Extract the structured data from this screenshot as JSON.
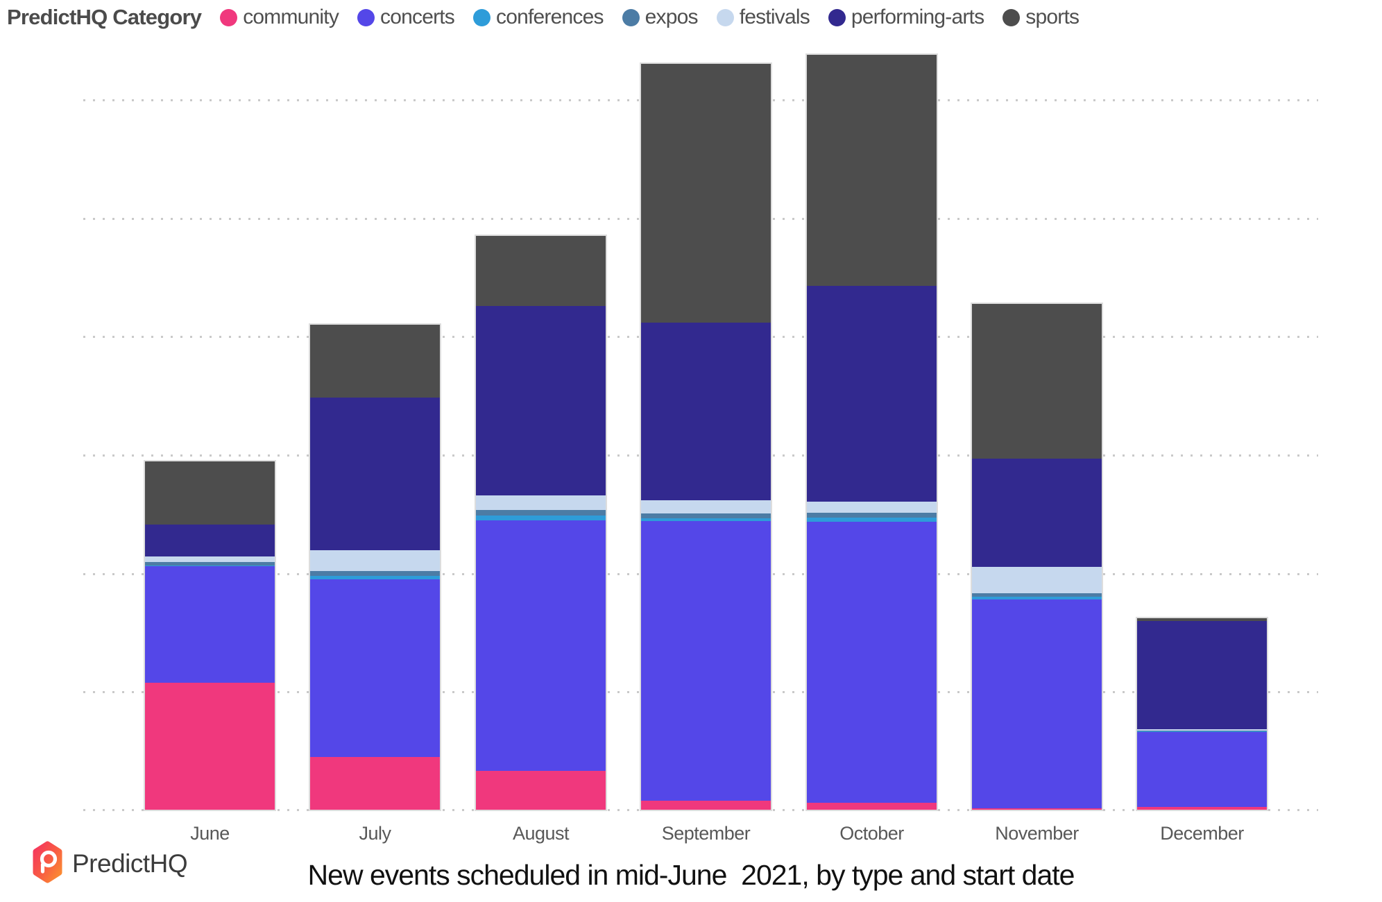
{
  "legend": {
    "title": "PredictHQ Category",
    "items": [
      {
        "label": "community",
        "color": "#F0387D"
      },
      {
        "label": "concerts",
        "color": "#5447E8"
      },
      {
        "label": "conferences",
        "color": "#2E9CD9"
      },
      {
        "label": "expos",
        "color": "#4C7CA5"
      },
      {
        "label": "festivals",
        "color": "#C6D8EE"
      },
      {
        "label": "performing-arts",
        "color": "#32298F"
      },
      {
        "label": "sports",
        "color": "#4D4D4D"
      }
    ]
  },
  "footer": {
    "brand": "PredictHQ",
    "title": "New events scheduled in mid-June  2021, by type and start date"
  },
  "chart_data": {
    "type": "bar",
    "stacked": true,
    "orientation": "vertical",
    "title": "New events scheduled in mid-June  2021, by type and start date",
    "xlabel": "",
    "ylabel": "",
    "legend_position": "top",
    "y_axis": {
      "labels_visible": false,
      "gridlines_dotted": true,
      "note": "no numeric scale shown; values below are relative stacked-segment heights measured in screenshot pixels (baseline y=1167, gridline spacing ~170.5px)"
    },
    "categories": [
      "June",
      "July",
      "August",
      "September",
      "October",
      "November",
      "December"
    ],
    "stack_order": "bottom-to-top as listed",
    "series": [
      {
        "name": "community",
        "color": "#F0387D",
        "values": [
          183,
          76,
          56,
          13,
          10,
          2,
          4
        ]
      },
      {
        "name": "concerts",
        "color": "#5447E8",
        "values": [
          168,
          256,
          361,
          403,
          405,
          301,
          108
        ]
      },
      {
        "name": "conferences",
        "color": "#2E9CD9",
        "values": [
          1,
          5,
          7,
          4,
          6,
          4,
          1
        ]
      },
      {
        "name": "expos",
        "color": "#4C7CA5",
        "values": [
          5,
          7,
          8,
          7,
          7,
          5,
          1
        ]
      },
      {
        "name": "festivals",
        "color": "#C6D8EE",
        "values": [
          8,
          30,
          21,
          19,
          16,
          38,
          2
        ]
      },
      {
        "name": "performing-arts",
        "color": "#32298F",
        "values": [
          46,
          220,
          273,
          256,
          311,
          156,
          156
        ]
      },
      {
        "name": "sports",
        "color": "#4D4D4D",
        "values": [
          91,
          105,
          101,
          373,
          333,
          223,
          4
        ]
      }
    ],
    "totals": [
      502,
      699,
      827,
      1075,
      1088,
      729,
      276
    ]
  }
}
